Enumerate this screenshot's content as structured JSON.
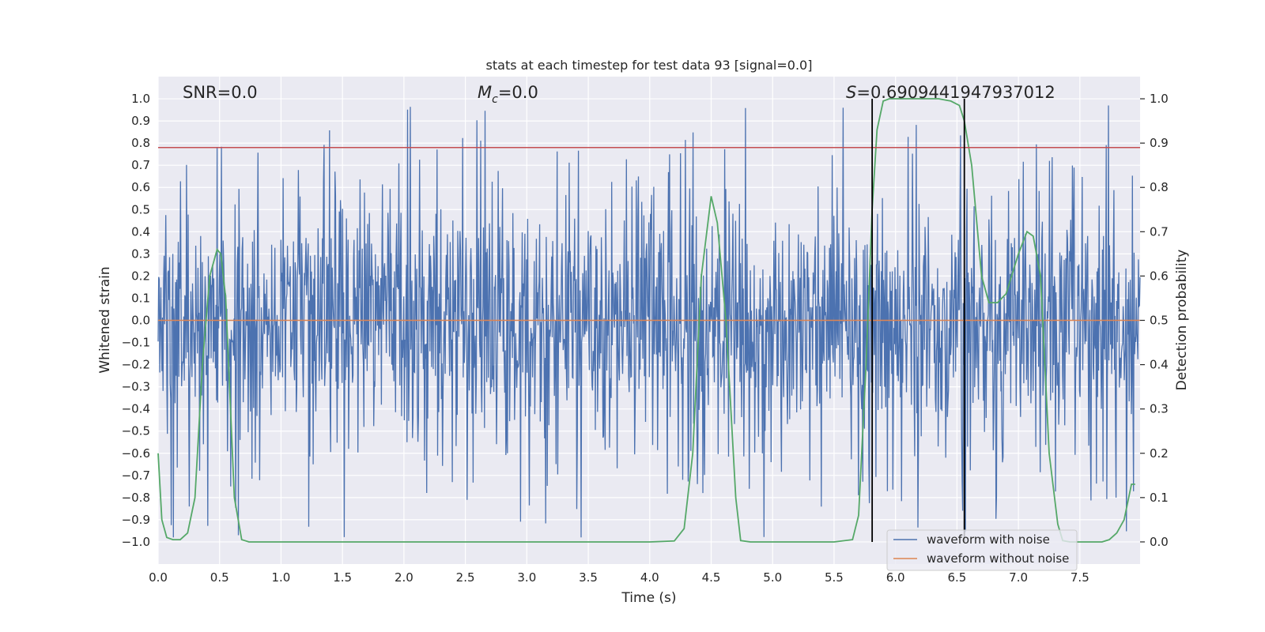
{
  "chart_data": {
    "type": "line",
    "title": "stats at each timestep for test data 93 [signal=0.0]",
    "xlabel": "Time (s)",
    "ylabel": "Whitened strain",
    "y2label": "Detection probability",
    "xlim": [
      0.0,
      7.99
    ],
    "ylim": [
      -1.1,
      1.1
    ],
    "y2lim": [
      -0.05,
      1.05
    ],
    "xticks": [
      0.0,
      0.5,
      1.0,
      1.5,
      2.0,
      2.5,
      3.0,
      3.5,
      4.0,
      4.5,
      5.0,
      5.5,
      6.0,
      6.5,
      7.0,
      7.5
    ],
    "xtick_labels": [
      "0.0",
      "0.5",
      "1.0",
      "1.5",
      "2.0",
      "2.5",
      "3.0",
      "3.5",
      "4.0",
      "4.5",
      "5.0",
      "5.5",
      "6.0",
      "6.5",
      "7.0",
      "7.5"
    ],
    "yticks": [
      1.0,
      0.9,
      0.8,
      0.7,
      0.6,
      0.5,
      0.4,
      0.3,
      0.2,
      0.1,
      0.0,
      -0.1,
      -0.2,
      -0.3,
      -0.4,
      -0.5,
      -0.6,
      -0.7,
      -0.8,
      -0.9,
      -1.0
    ],
    "ytick_labels": [
      "1.0",
      "0.9",
      "0.8",
      "0.7",
      "0.6",
      "0.5",
      "0.4",
      "0.3",
      "0.2",
      "0.1",
      "0.0",
      "−0.1",
      "−0.2",
      "−0.3",
      "−0.4",
      "−0.5",
      "−0.6",
      "−0.7",
      "−0.8",
      "−0.9",
      "−1.0"
    ],
    "y2ticks": [
      1.0,
      0.9,
      0.8,
      0.7,
      0.6,
      0.5,
      0.4,
      0.3,
      0.2,
      0.1,
      0.0
    ],
    "y2tick_labels": [
      "1.0",
      "0.9",
      "0.8",
      "0.7",
      "0.6",
      "0.5",
      "0.4",
      "0.3",
      "0.2",
      "0.1",
      "0.0"
    ],
    "threshold": 0.78,
    "vlines": [
      5.81,
      6.56
    ],
    "annotations": {
      "snr": "SNR=0.0",
      "mc_symbol": "M",
      "mc_sub": "c",
      "mc_value": "=0.0",
      "s_symbol": "S",
      "s_value": "=0.6909441947937012"
    },
    "noise": {
      "samples": 1800,
      "seed": 93,
      "envelope": 0.33,
      "spike_max": 0.98
    },
    "series": [
      {
        "name": "waveform with noise",
        "color": "#4c72b0"
      },
      {
        "name": "waveform without noise",
        "color": "#dd8452",
        "constant": 0.0
      },
      {
        "name": "detection probability",
        "color": "#55a868",
        "axis": "right",
        "x": [
          0.0,
          0.03,
          0.07,
          0.12,
          0.18,
          0.24,
          0.3,
          0.36,
          0.42,
          0.48,
          0.51,
          0.55,
          0.62,
          0.68,
          0.74,
          0.82,
          1.0,
          1.5,
          2.0,
          2.5,
          3.0,
          3.5,
          4.0,
          4.2,
          4.28,
          4.35,
          4.42,
          4.5,
          4.55,
          4.62,
          4.7,
          4.74,
          4.82,
          5.0,
          5.5,
          5.65,
          5.7,
          5.76,
          5.81,
          5.85,
          5.9,
          5.95,
          6.05,
          6.2,
          6.35,
          6.45,
          6.52,
          6.56,
          6.62,
          6.7,
          6.76,
          6.83,
          6.9,
          7.0,
          7.07,
          7.12,
          7.18,
          7.25,
          7.32,
          7.36,
          7.42,
          7.55,
          7.68,
          7.74,
          7.8,
          7.86,
          7.92,
          7.95
        ],
        "y": [
          0.2,
          0.05,
          0.01,
          0.005,
          0.005,
          0.02,
          0.1,
          0.4,
          0.6,
          0.66,
          0.65,
          0.55,
          0.1,
          0.005,
          0.0,
          0.0,
          0.0,
          0.0,
          0.0,
          0.0,
          0.0,
          0.0,
          0.0,
          0.002,
          0.03,
          0.2,
          0.6,
          0.78,
          0.72,
          0.5,
          0.1,
          0.003,
          0.0,
          0.0,
          0.0,
          0.005,
          0.06,
          0.4,
          0.75,
          0.93,
          0.995,
          1.0,
          1.0,
          1.0,
          1.0,
          0.995,
          0.985,
          0.95,
          0.85,
          0.6,
          0.54,
          0.54,
          0.56,
          0.65,
          0.7,
          0.69,
          0.6,
          0.2,
          0.04,
          0.003,
          0.0,
          0.0,
          0.0,
          0.005,
          0.02,
          0.05,
          0.13,
          0.13
        ]
      }
    ],
    "legend": {
      "position": "lower-right",
      "entries": [
        "waveform with noise",
        "waveform without noise"
      ]
    },
    "grid": true
  },
  "colors": {
    "axes_bg": "#eaeaf2",
    "grid": "#ffffff",
    "threshold": "#c44e52",
    "vline": "#000000"
  }
}
